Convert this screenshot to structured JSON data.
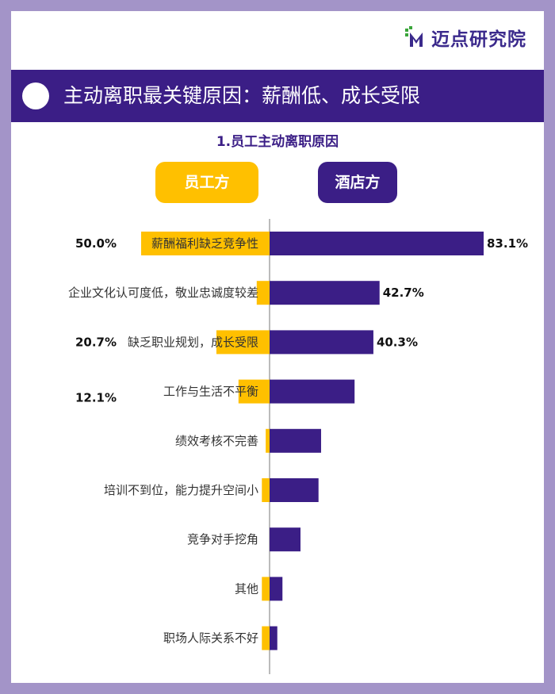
{
  "logo": {
    "text": "迈点研究院",
    "icon": "mt-logo-icon"
  },
  "banner": {
    "title": "主动离职最关键原因：薪酬低、成长受限"
  },
  "legend": {
    "employee": "员工方",
    "hotel": "酒店方"
  },
  "colors": {
    "employee": "#ffc000",
    "hotel": "#3b1e86",
    "banner": "#3b1e86",
    "frame": "#a394c8"
  },
  "chart_data": {
    "type": "bar",
    "title": "1.员工主动离职原因",
    "orientation": "horizontal-diverging",
    "categories": [
      "薪酬福利缺乏竞争性",
      "企业文化认可度低，敬业忠诚度较差",
      "缺乏职业规划，成长受限",
      "工作与生活不平衡",
      "绩效考核不完善",
      "培训不到位，能力提升空间小",
      "竞争对手挖角",
      "其他",
      "职场人际关系不好"
    ],
    "series": [
      {
        "name": "员工方",
        "values": [
          50.0,
          5.0,
          20.7,
          12.1,
          1.5,
          3.0,
          0.0,
          3.0,
          3.0
        ],
        "labels": [
          "50.0%",
          "",
          "20.7%",
          "12.1%",
          "",
          "",
          "",
          "",
          ""
        ]
      },
      {
        "name": "酒店方",
        "values": [
          83.1,
          42.7,
          40.3,
          33.0,
          20.0,
          19.0,
          12.0,
          5.0,
          3.0
        ],
        "labels": [
          "83.1%",
          "42.7%",
          "40.3%",
          "",
          "",
          "",
          "",
          "",
          ""
        ]
      }
    ],
    "xlim": [
      0,
      100
    ]
  }
}
